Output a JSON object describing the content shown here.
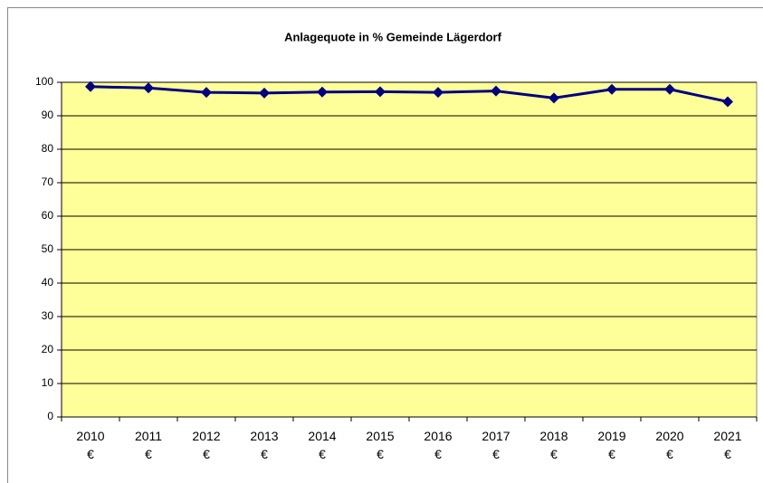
{
  "chart_data": {
    "type": "line",
    "title": "Anlagequote in % Gemeinde Lägerdorf",
    "categories": [
      "2010 €",
      "2011 €",
      "2012 €",
      "2013 €",
      "2014 €",
      "2015 €",
      "2016 €",
      "2017 €",
      "2018 €",
      "2019 €",
      "2020 €",
      "2021 €"
    ],
    "series": [
      {
        "name": "Anlagequote",
        "color": "#000080",
        "values": [
          98.7,
          98.3,
          97.0,
          96.8,
          97.1,
          97.2,
          97.0,
          97.4,
          95.3,
          97.9,
          97.9,
          94.2
        ]
      }
    ],
    "ylim": [
      0,
      100
    ],
    "yticks": [
      0,
      10,
      20,
      30,
      40,
      50,
      60,
      70,
      80,
      90,
      100
    ],
    "grid": true,
    "plot_background": "#ffff99"
  }
}
